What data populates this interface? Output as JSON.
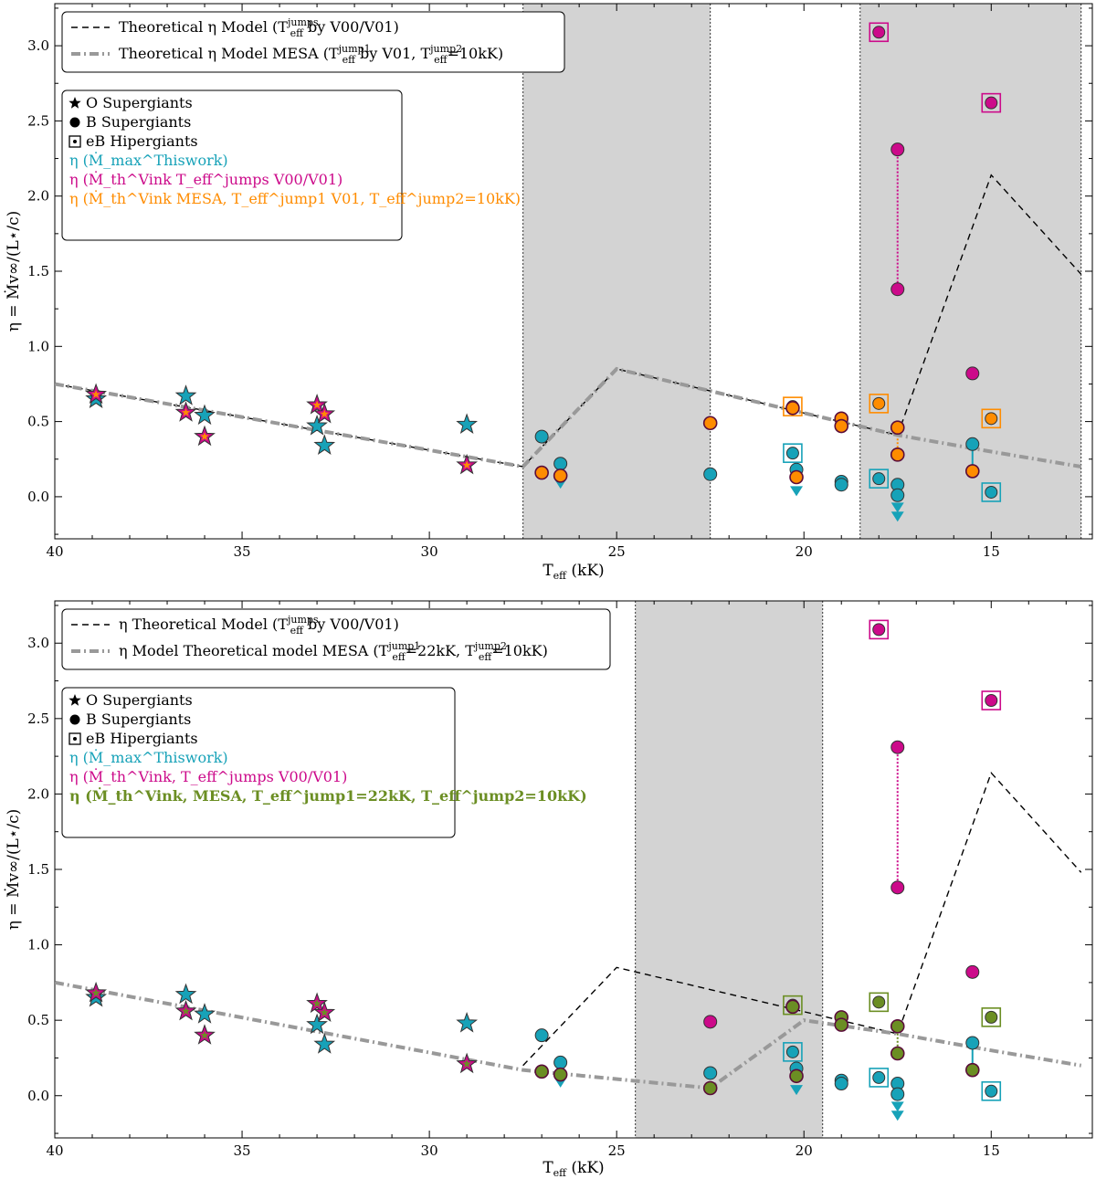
{
  "chart_data": [
    {
      "type": "scatter",
      "panel": "top",
      "xlabel": "T_eff (kK)",
      "ylabel": "η = Ṁv∞/(L⋆/c)",
      "xlim": [
        40,
        12.3
      ],
      "ylim": [
        -0.28,
        3.28
      ],
      "xticks": [
        40,
        35,
        30,
        25,
        20,
        15
      ],
      "yticks": [
        0.0,
        0.5,
        1.0,
        1.5,
        2.0,
        2.5,
        3.0
      ],
      "shaded_regions": [
        [
          27.5,
          22.5
        ],
        [
          18.5,
          12.6
        ]
      ],
      "legend_lines": [
        {
          "main": "Theoretical η Model (",
          "sup": "jumps",
          "post": " by V00/V01)",
          "style": "dashed",
          "color": "#000000"
        },
        {
          "main": "Theoretical η Model MESA (",
          "sup": "jump1",
          "mid": " by V01, ",
          "sup2": "jump2",
          "post": "=10kK)",
          "style": "dashdot",
          "color": "#999999"
        }
      ],
      "legend_markers": [
        {
          "symbol": "star",
          "text": "O Supergiants",
          "color": "#000000"
        },
        {
          "symbol": "circle",
          "text": "B Supergiants",
          "color": "#000000"
        },
        {
          "symbol": "square",
          "text": "eB Hipergiants",
          "color": "#000000"
        },
        {
          "symbol": "none",
          "text": "η (Ṁ_max^Thiswork)",
          "color": "#17a2b8"
        },
        {
          "symbol": "none",
          "text": "η (Ṁ_th^Vink T_eff^jumps V00/V01)",
          "color": "#cc0a8a"
        },
        {
          "symbol": "none",
          "text": "η (Ṁ_th^Vink MESA, T_eff^jump1 V01, T_eff^jump2=10kK)",
          "color": "#ff8c00"
        }
      ],
      "series": [
        {
          "name": "Theoretical η Model",
          "kind": "line",
          "style": "dashed",
          "color": "#000000",
          "x": [
            40,
            27.5,
            25,
            17.5,
            15,
            12.6
          ],
          "y": [
            0.75,
            0.2,
            0.85,
            0.41,
            2.14,
            1.48
          ]
        },
        {
          "name": "Theoretical η Model MESA",
          "kind": "line",
          "style": "dashdot",
          "color": "#999999",
          "x": [
            40,
            27.5,
            25,
            17.5,
            15,
            12.6
          ],
          "y": [
            0.75,
            0.2,
            0.85,
            0.41,
            0.3,
            0.2
          ]
        },
        {
          "name": "O Supergiants Thiswork",
          "kind": "star",
          "color": "#17a2b8",
          "x": [
            38.9,
            36.5,
            36.0,
            33.0,
            32.8,
            29.0
          ],
          "y": [
            0.65,
            0.67,
            0.54,
            0.47,
            0.34,
            0.48
          ]
        },
        {
          "name": "O Supergiants Vink",
          "kind": "star",
          "color": "#cc0a8a",
          "inner": "#ff8c00",
          "x": [
            38.9,
            36.5,
            36.0,
            33.0,
            32.8,
            29.0
          ],
          "y": [
            0.68,
            0.56,
            0.4,
            0.61,
            0.55,
            0.21
          ]
        },
        {
          "name": "B Supergiants Thiswork",
          "kind": "circle",
          "color": "#17a2b8",
          "x": [
            27.0,
            26.5,
            22.5,
            20.2,
            19.0,
            19.0,
            17.5,
            17.5,
            15.5
          ],
          "y": [
            0.4,
            0.22,
            0.15,
            0.18,
            0.1,
            0.08,
            0.08,
            0.01,
            0.35
          ]
        },
        {
          "name": "B Supergiants MESA",
          "kind": "circle",
          "color": "#ff8c00",
          "edge": "#5a0d3a",
          "x": [
            27.0,
            26.5,
            22.5,
            20.3,
            20.2,
            19.0,
            19.0,
            17.5,
            17.5,
            15.5
          ],
          "y": [
            0.16,
            0.14,
            0.49,
            0.59,
            0.13,
            0.52,
            0.47,
            0.46,
            0.28,
            0.17
          ]
        },
        {
          "name": "B Supergiants Vink",
          "kind": "circle",
          "color": "#cc0a8a",
          "x": [
            17.5,
            17.5,
            15.5
          ],
          "y": [
            2.31,
            1.38,
            0.82
          ]
        },
        {
          "name": "eB Hipergiants Thiswork",
          "kind": "square",
          "color": "#17a2b8",
          "x": [
            20.3,
            18.0,
            15.0
          ],
          "y": [
            0.29,
            0.12,
            0.03
          ]
        },
        {
          "name": "eB Hipergiants MESA",
          "kind": "square",
          "color": "#ff8c00",
          "x": [
            20.3,
            18.0,
            15.0
          ],
          "y": [
            0.6,
            0.62,
            0.52
          ]
        },
        {
          "name": "eB Hipergiants Vink",
          "kind": "square",
          "color": "#cc0a8a",
          "x": [
            18.0,
            15.0
          ],
          "y": [
            3.09,
            2.62
          ]
        }
      ],
      "upper_limits": {
        "color": "#17a2b8",
        "x": [
          26.5,
          20.2,
          17.5,
          17.5
        ],
        "y": [
          0.09,
          0.04,
          -0.07,
          -0.13
        ]
      }
    },
    {
      "type": "scatter",
      "panel": "bottom",
      "xlabel": "T_eff (kK)",
      "ylabel": "η = Ṁv∞/(L⋆/c)",
      "xlim": [
        40,
        12.3
      ],
      "ylim": [
        -0.28,
        3.28
      ],
      "xticks": [
        40,
        35,
        30,
        25,
        20,
        15
      ],
      "yticks": [
        0.0,
        0.5,
        1.0,
        1.5,
        2.0,
        2.5,
        3.0
      ],
      "shaded_regions": [
        [
          24.5,
          19.5
        ]
      ],
      "legend_lines": [
        {
          "main": "η Theoretical Model (",
          "sup": "jumps",
          "post": " by V00/V01)",
          "style": "dashed",
          "color": "#000000"
        },
        {
          "main": "η Model Theoretical model MESA (",
          "sup": "jump1",
          "mid": "=22kK, ",
          "sup2": "jump2",
          "post": "=10kK)",
          "style": "dashdot",
          "color": "#999999"
        }
      ],
      "legend_markers": [
        {
          "symbol": "star",
          "text": "O Supergiants",
          "color": "#000000"
        },
        {
          "symbol": "circle",
          "text": "B Supergiants",
          "color": "#000000"
        },
        {
          "symbol": "square",
          "text": "eB Hipergiants",
          "color": "#000000"
        },
        {
          "symbol": "none",
          "text": "η (Ṁ_max^Thiswork)",
          "color": "#17a2b8"
        },
        {
          "symbol": "none",
          "text": "η (Ṁ_th^Vink, T_eff^jumps V00/V01)",
          "color": "#cc0a8a"
        },
        {
          "symbol": "none",
          "text": "η (Ṁ_th^Vink, MESA, T_eff^jump1=22kK, T_eff^jump2=10kK)",
          "color": "#6b8e23"
        }
      ],
      "series": [
        {
          "name": "η Theoretical Model",
          "kind": "line",
          "style": "dashed",
          "color": "#000000",
          "x": [
            27.5,
            25,
            17.5,
            15,
            12.6
          ],
          "y": [
            0.2,
            0.85,
            0.41,
            2.14,
            1.48
          ]
        },
        {
          "name": "η Model MESA",
          "kind": "line",
          "style": "dashdot",
          "color": "#999999",
          "x": [
            40,
            27.5,
            22.5,
            20.0,
            17.5,
            15,
            12.6
          ],
          "y": [
            0.75,
            0.17,
            0.05,
            0.5,
            0.41,
            0.3,
            0.2
          ]
        },
        {
          "name": "O Supergiants Thiswork",
          "kind": "star",
          "color": "#17a2b8",
          "x": [
            38.9,
            36.5,
            36.0,
            33.0,
            32.8,
            29.0
          ],
          "y": [
            0.65,
            0.67,
            0.54,
            0.47,
            0.34,
            0.48
          ]
        },
        {
          "name": "O Supergiants Vink",
          "kind": "star",
          "color": "#cc0a8a",
          "inner": "#6b8e23",
          "x": [
            38.9,
            36.5,
            36.0,
            33.0,
            32.8,
            29.0
          ],
          "y": [
            0.68,
            0.56,
            0.4,
            0.61,
            0.55,
            0.21
          ]
        },
        {
          "name": "B Supergiants Thiswork",
          "kind": "circle",
          "color": "#17a2b8",
          "x": [
            27.0,
            26.5,
            22.5,
            20.2,
            19.0,
            19.0,
            17.5,
            17.5,
            15.5
          ],
          "y": [
            0.4,
            0.22,
            0.15,
            0.18,
            0.1,
            0.08,
            0.08,
            0.01,
            0.35
          ]
        },
        {
          "name": "B Supergiants MESA",
          "kind": "circle",
          "color": "#6b8e23",
          "edge": "#5a0d3a",
          "x": [
            27.0,
            26.5,
            22.5,
            20.3,
            20.2,
            19.0,
            19.0,
            17.5,
            17.5,
            15.5
          ],
          "y": [
            0.16,
            0.14,
            0.05,
            0.59,
            0.13,
            0.52,
            0.47,
            0.46,
            0.28,
            0.17
          ]
        },
        {
          "name": "B Supergiants Vink",
          "kind": "circle",
          "color": "#cc0a8a",
          "x": [
            22.5,
            17.5,
            17.5,
            15.5
          ],
          "y": [
            0.49,
            2.31,
            1.38,
            0.82
          ]
        },
        {
          "name": "eB Hipergiants Thiswork",
          "kind": "square",
          "color": "#17a2b8",
          "x": [
            20.3,
            18.0,
            15.0
          ],
          "y": [
            0.29,
            0.12,
            0.03
          ]
        },
        {
          "name": "eB Hipergiants MESA",
          "kind": "square",
          "color": "#6b8e23",
          "x": [
            20.3,
            18.0,
            15.0
          ],
          "y": [
            0.6,
            0.62,
            0.52
          ]
        },
        {
          "name": "eB Hipergiants Vink",
          "kind": "square",
          "color": "#cc0a8a",
          "x": [
            18.0,
            15.0
          ],
          "y": [
            3.09,
            2.62
          ]
        }
      ],
      "upper_limits": {
        "color": "#17a2b8",
        "x": [
          26.5,
          20.2,
          17.5,
          17.5
        ],
        "y": [
          0.09,
          0.04,
          -0.07,
          -0.13
        ]
      }
    }
  ],
  "legend_labels": {
    "o_supergiants": "O Supergiants",
    "b_supergiants": "B Supergiants",
    "eb_hipergiants": "eB Hipergiants",
    "t_eff": "T",
    "eff": "eff",
    "x_unit": "(kK)"
  }
}
